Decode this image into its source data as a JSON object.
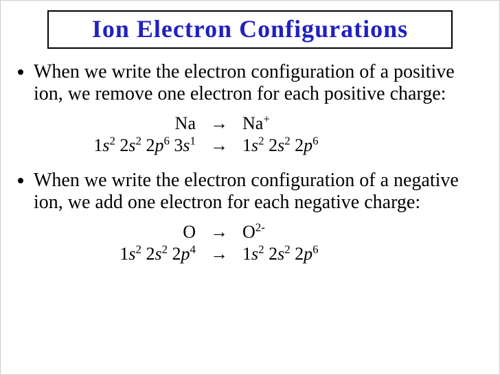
{
  "title": {
    "text": "Ion Electron Configurations",
    "color": "#2020c0",
    "border_color": "#000000",
    "fontsize": 36
  },
  "body_fontsize": 28,
  "config_fontsize": 26,
  "bullets": [
    {
      "text": "When we write the electron configuration of a positive ion, we remove one electron for each positive charge:",
      "example": {
        "symbol_left": "Na",
        "symbol_right_html": "Na<sup>+</sup>",
        "config_left_html": "1<span class='ital'>s</span><sup>2</sup> 2<span class='ital'>s</span><sup>2</sup> 2<span class='ital'>p</span><sup>6</sup> 3<span class='ital'>s</span><sup>1</sup>",
        "config_right_html": "1<span class='ital'>s</span><sup>2</sup> 2<span class='ital'>s</span><sup>2</sup> 2<span class='ital'>p</span><sup>6</sup>",
        "arrow": "→"
      }
    },
    {
      "text": "When we write the electron configuration of a negative ion, we add one electron for each negative charge:",
      "example": {
        "symbol_left": "O",
        "symbol_right_html": "O<sup>2-</sup>",
        "config_left_html": "1<span class='ital'>s</span><sup>2</sup> 2<span class='ital'>s</span><sup>2</sup> 2<span class='ital'>p</span><sup>4</sup>",
        "config_right_html": "1<span class='ital'>s</span><sup>2</sup> 2<span class='ital'>s</span><sup>2</sup> 2<span class='ital'>p</span><sup>6</sup>",
        "arrow": "→"
      }
    }
  ]
}
